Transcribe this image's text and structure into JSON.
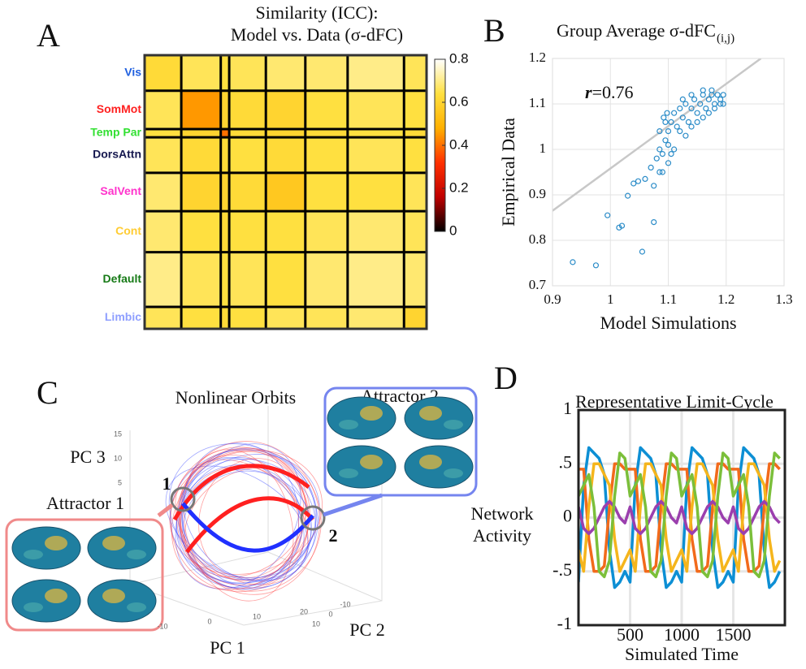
{
  "panels": [
    "A",
    "B",
    "C",
    "D"
  ],
  "chart_data": [
    {
      "type": "heatmap",
      "title": [
        "Similarity (ICC):",
        "Model vs. Data (σ-dFC)"
      ],
      "categories": [
        "Vis",
        "SomMot",
        "Temp Par",
        "DorsAttn",
        "SalVent",
        "Cont",
        "Default",
        "Limbic"
      ],
      "category_colors": [
        "#1f5fdf",
        "#ff2020",
        "#33e033",
        "#16184f",
        "#ff33cc",
        "#ffcc33",
        "#167a16",
        "#8f9fff"
      ],
      "values": [
        [
          0.62,
          0.66,
          0.64,
          0.66,
          0.68,
          0.68,
          0.7,
          0.66
        ],
        [
          0.66,
          0.45,
          0.6,
          0.62,
          0.6,
          0.64,
          0.66,
          0.64
        ],
        [
          0.64,
          0.6,
          0.4,
          0.62,
          0.6,
          0.62,
          0.64,
          0.62
        ],
        [
          0.66,
          0.62,
          0.62,
          0.64,
          0.62,
          0.64,
          0.66,
          0.64
        ],
        [
          0.68,
          0.6,
          0.6,
          0.62,
          0.56,
          0.64,
          0.64,
          0.66
        ],
        [
          0.68,
          0.64,
          0.62,
          0.64,
          0.64,
          0.66,
          0.68,
          0.66
        ],
        [
          0.7,
          0.66,
          0.64,
          0.66,
          0.64,
          0.68,
          0.7,
          0.68
        ],
        [
          0.66,
          0.64,
          0.62,
          0.64,
          0.66,
          0.66,
          0.68,
          0.6
        ]
      ],
      "clim": [
        0,
        0.8
      ],
      "cticks": [
        0,
        0.2,
        0.4,
        0.6,
        0.8
      ],
      "colormap": [
        "#000000",
        "#c00000",
        "#ff3000",
        "#ffb000",
        "#ffe040",
        "#ffffff"
      ]
    },
    {
      "type": "scatter",
      "title": "Group Average σ-dFC",
      "title_subscript": "(i,j)",
      "x_label": "Model Simulations",
      "y_label": "Empirical Data",
      "annotation_symbol": "r",
      "annotation_text": "=0.76",
      "xlim": [
        0.9,
        1.3
      ],
      "xticks": [
        0.9,
        1,
        1.1,
        1.2,
        1.3
      ],
      "ylim": [
        0.7,
        1.2
      ],
      "yticks": [
        0.7,
        0.8,
        0.9,
        1,
        1.1,
        1.2
      ],
      "grid": true,
      "series": [
        {
          "color": "#2b8cc8",
          "x": [
            0.935,
            0.975,
            0.995,
            1.015,
            1.02,
            1.055,
            1.075,
            1.03,
            1.04,
            1.048,
            1.06,
            1.075,
            1.085,
            1.07,
            1.08,
            1.085,
            1.09,
            1.095,
            1.1,
            1.095,
            1.1,
            1.105,
            1.09,
            1.1,
            1.11,
            1.085,
            1.092,
            1.098,
            1.105,
            1.11,
            1.115,
            1.12,
            1.125,
            1.13,
            1.135,
            1.14,
            1.145,
            1.15,
            1.155,
            1.16,
            1.165,
            1.17,
            1.175,
            1.18,
            1.185,
            1.19,
            1.195,
            1.12,
            1.13,
            1.14,
            1.15,
            1.16,
            1.17,
            1.18,
            1.19,
            1.125,
            1.14,
            1.16,
            1.175,
            1.195
          ],
          "values": [
            0.752,
            0.745,
            0.855,
            0.828,
            0.832,
            0.775,
            0.84,
            0.898,
            0.925,
            0.93,
            0.935,
            0.92,
            0.95,
            0.96,
            0.98,
            1.0,
            0.99,
            1.02,
            1.04,
            1.06,
            1.01,
            0.99,
            0.95,
            0.97,
            1.0,
            1.04,
            1.07,
            1.08,
            1.06,
            1.08,
            1.05,
            1.09,
            1.07,
            1.1,
            1.06,
            1.09,
            1.11,
            1.08,
            1.1,
            1.12,
            1.09,
            1.11,
            1.13,
            1.1,
            1.12,
            1.11,
            1.12,
            1.04,
            1.03,
            1.05,
            1.06,
            1.07,
            1.08,
            1.09,
            1.1,
            1.11,
            1.12,
            1.13,
            1.12,
            1.1
          ]
        }
      ],
      "fit_line": {
        "color": "#c8c8c8",
        "x": [
          0.9,
          1.26
        ],
        "values": [
          0.865,
          1.2
        ]
      }
    },
    {
      "type": "line",
      "title": "Representative Limit-Cycle",
      "x_label": "Simulated Time",
      "y_label": [
        "Network",
        "Activity"
      ],
      "xlim": [
        0,
        2000
      ],
      "xticks": [
        500,
        1000,
        1500
      ],
      "ylim": [
        -1,
        1
      ],
      "yticks": [
        -1,
        {
          "value": -0.5,
          "label": "-.5"
        },
        0,
        {
          "value": 0.5,
          "label": ".5"
        },
        1
      ],
      "grid": true,
      "x": [
        0,
        50,
        100,
        150,
        200,
        250,
        300,
        350,
        400,
        450,
        500,
        550,
        600,
        650,
        700,
        750,
        800,
        850,
        900,
        950,
        1000,
        1050,
        1100,
        1150,
        1200,
        1250,
        1300,
        1350,
        1400,
        1450,
        1500,
        1550,
        1600,
        1650,
        1700,
        1750,
        1800,
        1850,
        1900,
        1950
      ],
      "series": [
        {
          "color": "#0d8fd4",
          "values": [
            -0.6,
            0.3,
            0.65,
            0.6,
            0.55,
            0.4,
            -0.3,
            -0.65,
            -0.6,
            -0.5,
            -0.6,
            0.3,
            0.65,
            0.6,
            0.55,
            0.4,
            -0.3,
            -0.65,
            -0.6,
            -0.5,
            -0.6,
            0.3,
            0.65,
            0.6,
            0.55,
            0.4,
            -0.3,
            -0.65,
            -0.6,
            -0.5,
            -0.6,
            0.3,
            0.65,
            0.6,
            0.55,
            0.4,
            -0.3,
            -0.65,
            -0.6,
            -0.5
          ]
        },
        {
          "color": "#f26a1b",
          "values": [
            0.45,
            0.45,
            -0.2,
            -0.5,
            -0.5,
            -0.45,
            0.1,
            0.5,
            0.5,
            0.45,
            0.45,
            0.45,
            -0.2,
            -0.5,
            -0.5,
            -0.45,
            0.1,
            0.5,
            0.5,
            0.45,
            0.45,
            0.45,
            -0.2,
            -0.5,
            -0.5,
            -0.45,
            0.1,
            0.5,
            0.5,
            0.45,
            0.45,
            0.45,
            -0.2,
            -0.5,
            -0.5,
            -0.45,
            0.1,
            0.5,
            0.5,
            0.45
          ]
        },
        {
          "color": "#f5b51c",
          "values": [
            -0.3,
            -0.5,
            0.1,
            0.5,
            0.5,
            0.4,
            0.3,
            -0.2,
            -0.5,
            -0.4,
            -0.3,
            -0.5,
            0.1,
            0.5,
            0.5,
            0.4,
            0.3,
            -0.2,
            -0.5,
            -0.4,
            -0.3,
            -0.5,
            0.1,
            0.5,
            0.5,
            0.4,
            0.3,
            -0.2,
            -0.5,
            -0.4,
            -0.3,
            -0.5,
            0.1,
            0.5,
            0.5,
            0.4,
            0.3,
            -0.2,
            -0.5,
            -0.4
          ]
        },
        {
          "color": "#9b3fae",
          "values": [
            0.1,
            -0.1,
            -0.15,
            -0.1,
            0.0,
            0.1,
            0.15,
            0.1,
            0.0,
            -0.05,
            0.1,
            -0.1,
            -0.15,
            -0.1,
            0.0,
            0.1,
            0.15,
            0.1,
            0.0,
            -0.05,
            0.1,
            -0.1,
            -0.15,
            -0.1,
            0.0,
            0.1,
            0.15,
            0.1,
            0.0,
            -0.05,
            0.1,
            -0.1,
            -0.15,
            -0.1,
            0.0,
            0.1,
            0.15,
            0.1,
            0.0,
            -0.05
          ]
        },
        {
          "color": "#7bbf3a",
          "values": [
            0.2,
            0.3,
            0.4,
            0.1,
            -0.5,
            -0.55,
            -0.4,
            0.2,
            0.6,
            0.55,
            0.2,
            0.3,
            0.4,
            0.1,
            -0.5,
            -0.55,
            -0.4,
            0.2,
            0.6,
            0.55,
            0.2,
            0.3,
            0.4,
            0.1,
            -0.5,
            -0.55,
            -0.4,
            0.2,
            0.6,
            0.55,
            0.2,
            0.3,
            0.4,
            0.1,
            -0.5,
            -0.55,
            -0.4,
            0.2,
            0.6,
            0.55
          ]
        }
      ]
    }
  ],
  "diagram": {
    "title": "Nonlinear Orbits",
    "attractor_2": "Attractor 2",
    "attractor_1": "Attractor 1",
    "axis_labels": [
      "PC 3",
      "PC 1",
      "PC 2"
    ],
    "markers": [
      "1",
      "2"
    ],
    "pc3_ticks": [
      15,
      10,
      5
    ],
    "pc1_ticks": [
      -10,
      0,
      10,
      20
    ],
    "pc2_ticks": [
      -10,
      0,
      10
    ]
  }
}
